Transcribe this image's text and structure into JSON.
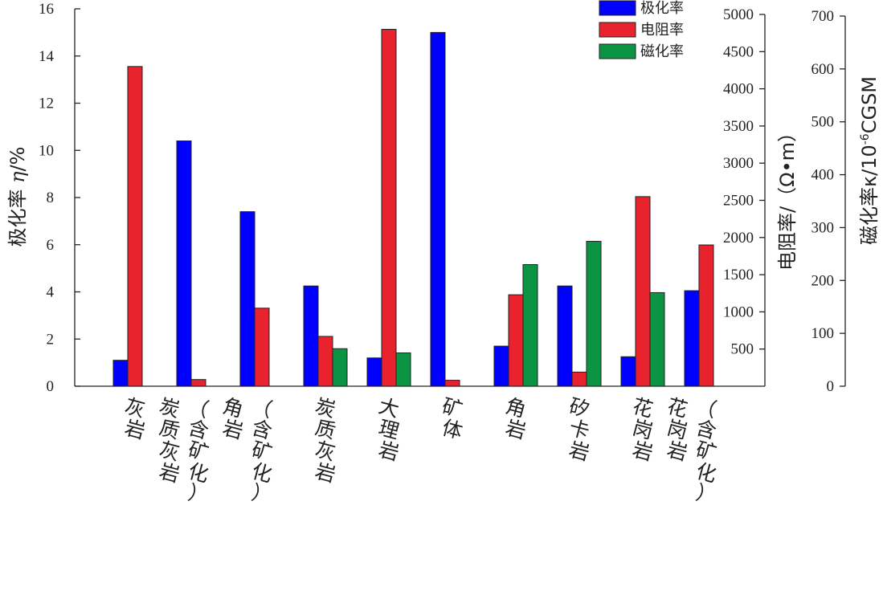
{
  "chart_data": {
    "type": "bar",
    "categories": [
      "灰岩",
      "炭质灰岩（含矿化）",
      "角岩（含矿化）",
      "炭质灰岩",
      "大理岩",
      "矿体",
      "角岩",
      "矽卡岩",
      "花岗岩",
      "花岗岩（含矿化）"
    ],
    "series": [
      {
        "name": "极化率",
        "axis": "left",
        "color": "#0000ff",
        "values": [
          1.1,
          10.4,
          7.4,
          4.25,
          1.2,
          15.0,
          1.7,
          4.25,
          1.25,
          4.05
        ]
      },
      {
        "name": "电阻率",
        "axis": "right1",
        "color": "#e8232d",
        "values": [
          4300,
          90,
          1050,
          670,
          4800,
          80,
          1230,
          190,
          2550,
          1900
        ]
      },
      {
        "name": "磁化率",
        "axis": "right2",
        "color": "#0a9444",
        "values": [
          null,
          null,
          null,
          71,
          63,
          null,
          230,
          274,
          177,
          null
        ]
      }
    ],
    "axes": {
      "left": {
        "label_prefix": "极化率 ",
        "label_symbol": "η",
        "label_suffix": "/%",
        "ylim": [
          0,
          16
        ],
        "ticks": [
          "0",
          "2",
          "4",
          "6",
          "8",
          "10",
          "12",
          "14",
          "16"
        ]
      },
      "right1": {
        "label": "电阻率/（Ω•m）",
        "ylim": [
          0,
          5000
        ],
        "ticks": [
          "500",
          "1000",
          "1500",
          "2000",
          "2500",
          "3000",
          "3500",
          "4000",
          "4500",
          "5000"
        ]
      },
      "right2": {
        "label_prefix": "磁化率κ/10",
        "label_sup": "-6",
        "label_suffix": "CGSM",
        "ylim": [
          0,
          700
        ],
        "ticks": [
          "0",
          "100",
          "200",
          "300",
          "400",
          "500",
          "600",
          "700"
        ]
      }
    },
    "legend": {
      "placement": "top-right"
    },
    "grid": false
  }
}
